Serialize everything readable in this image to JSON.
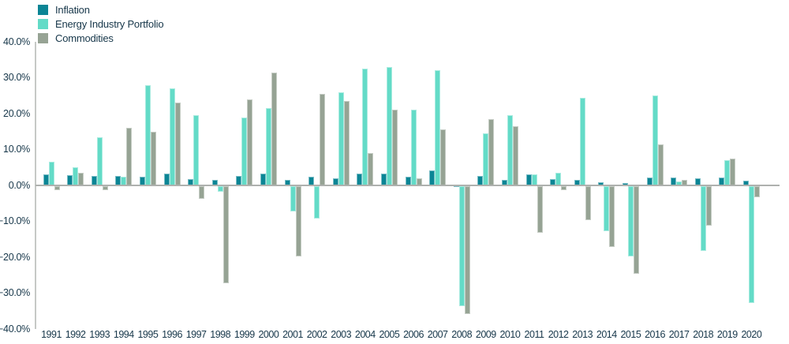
{
  "chart_data": {
    "type": "bar",
    "title": "",
    "xlabel": "",
    "ylabel": "",
    "grid": false,
    "legend_position": "top-left",
    "categories": [
      "1991",
      "1992",
      "1993",
      "1994",
      "1995",
      "1996",
      "1997",
      "1998",
      "1999",
      "2000",
      "2001",
      "2002",
      "2003",
      "2004",
      "2005",
      "2006",
      "2007",
      "2008",
      "2009",
      "2010",
      "2011",
      "2012",
      "2013",
      "2014",
      "2015",
      "2016",
      "2017",
      "2018",
      "2019",
      "2020"
    ],
    "series": [
      {
        "name": "Inflation",
        "color": "#0b8595",
        "values": [
          3.1,
          2.9,
          2.7,
          2.7,
          2.5,
          3.3,
          1.7,
          1.6,
          2.7,
          3.3,
          1.6,
          2.4,
          1.9,
          3.3,
          3.4,
          2.5,
          4.1,
          0.1,
          2.7,
          1.5,
          3.0,
          1.7,
          1.5,
          0.8,
          0.7,
          2.1,
          2.1,
          1.9,
          2.3,
          1.4
        ]
      },
      {
        "name": "Energy Industry Portfolio",
        "color": "#63dbc7",
        "values": [
          6.5,
          5.0,
          13.5,
          2.5,
          28.0,
          27.0,
          19.5,
          -1.5,
          19.0,
          21.5,
          -7.0,
          -9.0,
          26.0,
          32.5,
          33.0,
          21.0,
          32.0,
          -33.5,
          14.5,
          19.5,
          3.0,
          3.5,
          24.5,
          -12.5,
          -19.5,
          25.0,
          1.0,
          -18.0,
          7.0,
          -32.5
        ]
      },
      {
        "name": "Commodities",
        "color": "#96a394",
        "values": [
          -1.0,
          3.5,
          -1.0,
          16.0,
          15.0,
          23.0,
          -3.5,
          -27.0,
          24.0,
          31.5,
          -19.5,
          25.5,
          23.5,
          9.0,
          21.0,
          2.0,
          15.5,
          -35.5,
          18.5,
          16.5,
          -13.0,
          -1.0,
          -9.5,
          -17.0,
          -24.5,
          11.5,
          1.5,
          -11.0,
          7.5,
          -3.0
        ]
      }
    ],
    "y_axis": {
      "min": -40,
      "max": 40,
      "step": 10,
      "tick_labels": [
        "40.0%",
        "30.0%",
        "20.0%",
        "10.0%",
        "0.0%",
        "−10.0%",
        "−20.0%",
        "−30.0%",
        "−40.0%"
      ]
    }
  }
}
